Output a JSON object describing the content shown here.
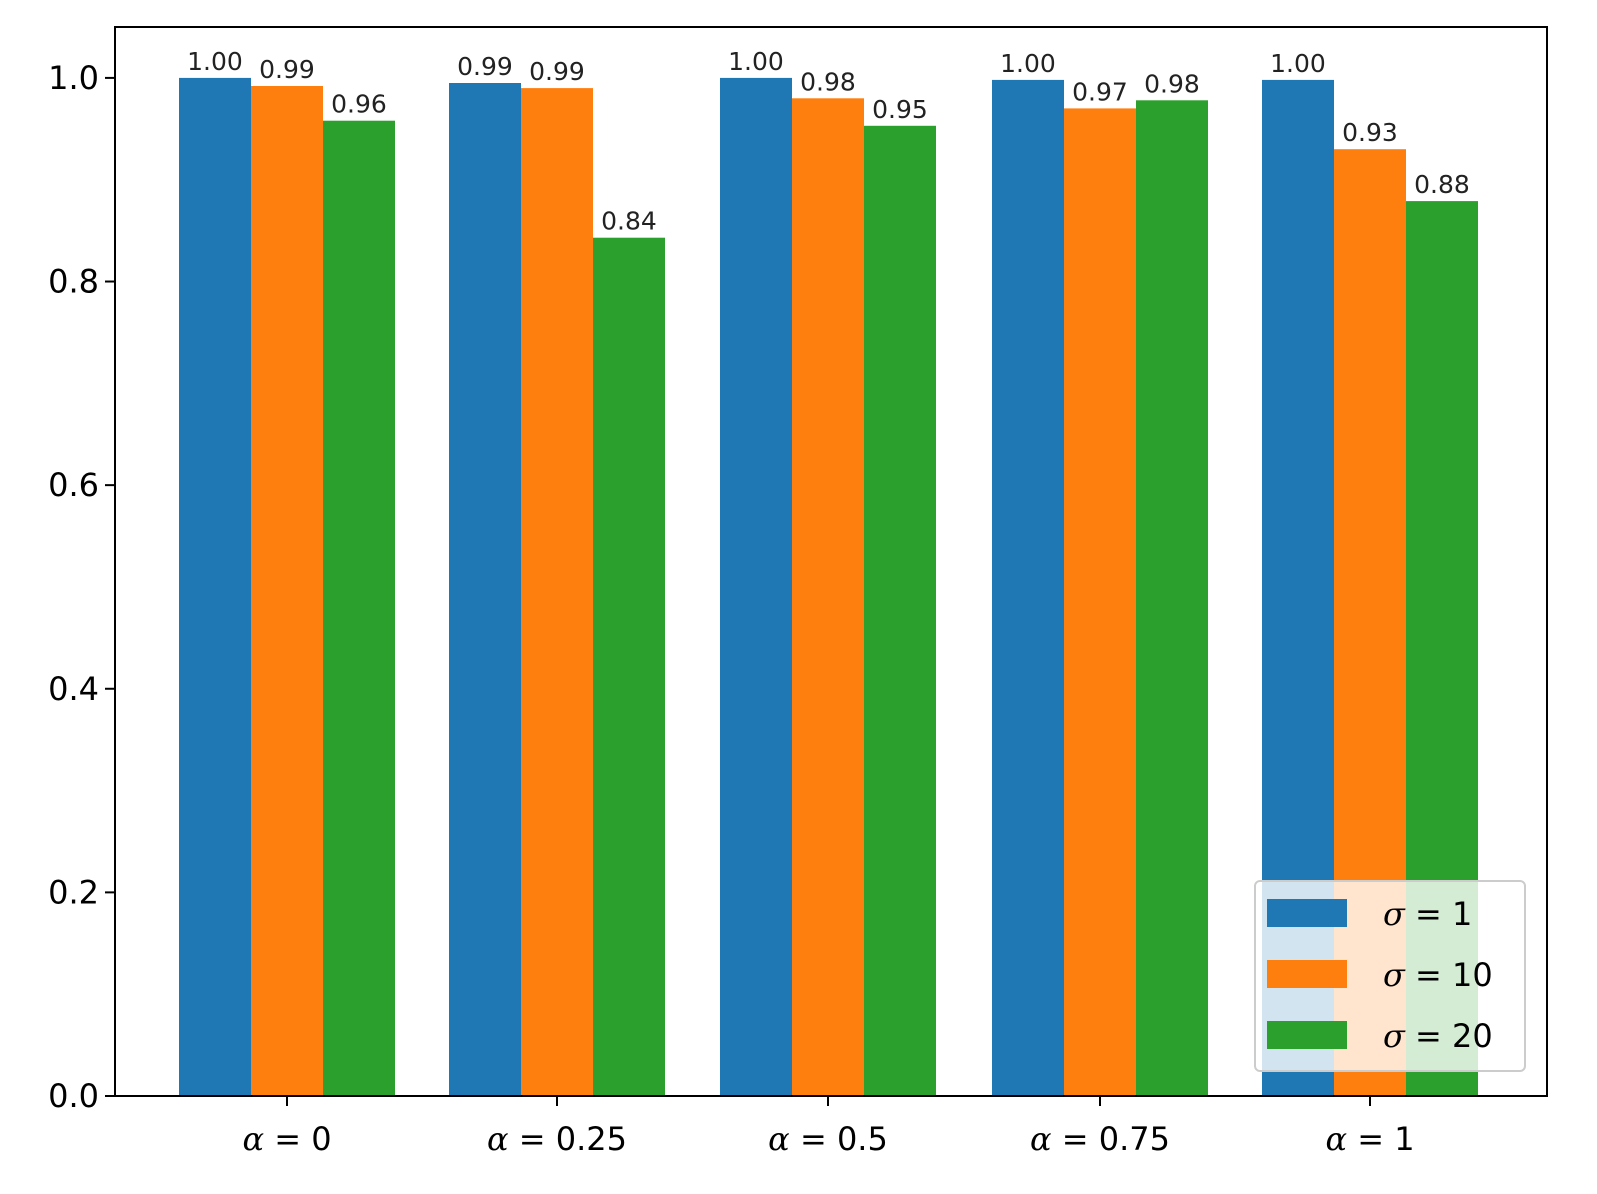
{
  "chart_data": {
    "type": "bar",
    "title": "",
    "xlabel": "",
    "ylabel": "",
    "ylim": [
      0,
      1.05
    ],
    "yticks": [
      {
        "value": 0.0,
        "label": "0.0"
      },
      {
        "value": 0.2,
        "label": "0.2"
      },
      {
        "value": 0.4,
        "label": "0.4"
      },
      {
        "value": 0.6,
        "label": "0.6"
      },
      {
        "value": 0.8,
        "label": "0.8"
      },
      {
        "value": 1.0,
        "label": "1.0"
      }
    ],
    "grid": false,
    "legend_position": "lower-right",
    "categories": [
      {
        "symbol": "α",
        "rest": " = 0"
      },
      {
        "symbol": "α",
        "rest": " = 0.25"
      },
      {
        "symbol": "α",
        "rest": " = 0.5"
      },
      {
        "symbol": "α",
        "rest": " = 0.75"
      },
      {
        "symbol": "α",
        "rest": " = 1"
      }
    ],
    "series": [
      {
        "name_symbol": "σ",
        "name_rest": " = 1",
        "color": "#1f77b4",
        "values": [
          1.0,
          0.995,
          1.0,
          0.998,
          0.998
        ],
        "labels": [
          "1.00",
          "0.99",
          "1.00",
          "1.00",
          "1.00"
        ]
      },
      {
        "name_symbol": "σ",
        "name_rest": " = 10",
        "color": "#ff7f0e",
        "values": [
          0.992,
          0.99,
          0.98,
          0.97,
          0.93
        ],
        "labels": [
          "0.99",
          "0.99",
          "0.98",
          "0.97",
          "0.93"
        ]
      },
      {
        "name_symbol": "σ",
        "name_rest": " = 20",
        "color": "#2ca02c",
        "values": [
          0.958,
          0.843,
          0.953,
          0.978,
          0.879
        ],
        "labels": [
          "0.96",
          "0.84",
          "0.95",
          "0.98",
          "0.88"
        ]
      }
    ]
  }
}
